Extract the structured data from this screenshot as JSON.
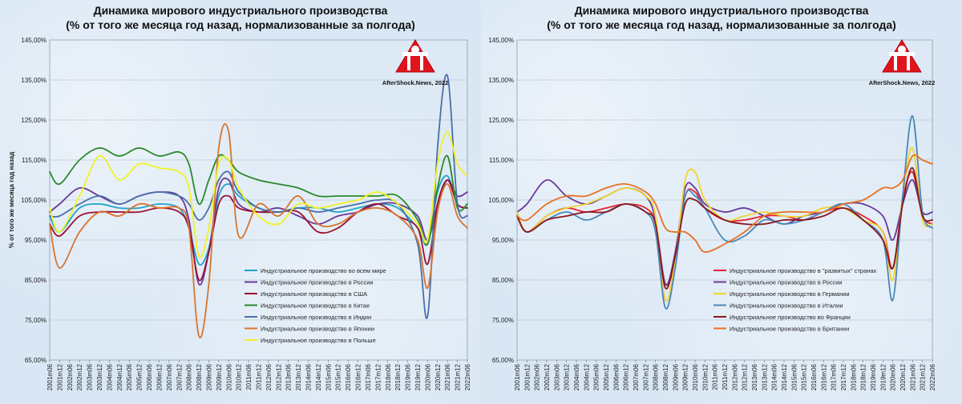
{
  "logo": {
    "text": "AfterShock.News, 2022"
  },
  "chart_data": [
    {
      "type": "line",
      "title": "Динамика мирового индустриального производства",
      "subtitle": "(% от того же месяца год назад, нормализованные за полгода)",
      "ylabel": "% от того же месяца год назад",
      "xlabel": "",
      "ylim": [
        65,
        145
      ],
      "yticks": [
        "65,00%",
        "75,00%",
        "85,00%",
        "95,00%",
        "105,00%",
        "115,00%",
        "125,00%",
        "135,00%",
        "145,00%"
      ],
      "xticks": [
        "2001m06",
        "2001m12",
        "2002m06",
        "2002m12",
        "2003m06",
        "2003m12",
        "2004m06",
        "2004m12",
        "2005m06",
        "2005m12",
        "2006m06",
        "2006m12",
        "2007m06",
        "2007m12",
        "2008m06",
        "2008m12",
        "2009m06",
        "2009m12",
        "2010m06",
        "2010m12",
        "2011m06",
        "2011m12",
        "2012m06",
        "2012m12",
        "2013m06",
        "2013m12",
        "2014m06",
        "2014m12",
        "2015m06",
        "2015m12",
        "2016m06",
        "2016m12",
        "2017m06",
        "2017m12",
        "2018m06",
        "2018m12",
        "2019m06",
        "2019m12",
        "2020m06",
        "2020m12",
        "2021m06",
        "2021m12",
        "2022m06"
      ],
      "x": [
        2001.5,
        2002,
        2003,
        2004,
        2005,
        2006,
        2007,
        2008,
        2008.5,
        2009,
        2009.5,
        2010,
        2010.5,
        2011,
        2012,
        2013,
        2014,
        2015,
        2016,
        2017,
        2018,
        2019,
        2020,
        2020.5,
        2021,
        2021.5,
        2022,
        2022.5
      ],
      "series": [
        {
          "name": "Индустриальное производство во всем мире",
          "color": "#1fa3c9",
          "values": [
            101,
            97,
            103,
            104,
            103,
            103,
            104,
            103,
            98,
            89,
            93,
            106,
            109,
            106,
            103,
            102,
            103,
            103,
            102,
            103,
            104,
            103,
            98,
            94,
            107,
            111,
            104,
            103
          ]
        },
        {
          "name": "Индустриальное производство в России",
          "color": "#6b3a9a",
          "values": [
            102,
            104,
            108,
            106,
            104,
            106,
            107,
            106,
            100,
            84,
            92,
            108,
            110,
            104,
            102,
            103,
            101,
            99,
            101,
            102,
            104,
            104,
            101,
            95,
            104,
            110,
            106,
            107
          ]
        },
        {
          "name": "Индустриальное производство в США",
          "color": "#9b1030",
          "values": [
            99,
            96,
            101,
            102,
            102,
            102,
            103,
            102,
            98,
            85,
            92,
            104,
            106,
            103,
            102,
            102,
            102,
            97,
            98,
            102,
            104,
            101,
            98,
            89,
            104,
            110,
            104,
            103
          ]
        },
        {
          "name": "Индустриальное производство в Китае",
          "color": "#2a8a2a",
          "values": [
            112,
            109,
            115,
            118,
            116,
            118,
            116,
            117,
            114,
            104,
            110,
            116,
            115,
            112,
            110,
            109,
            108,
            106,
            106,
            106,
            106,
            106,
            100,
            94,
            108,
            116,
            103,
            104
          ]
        },
        {
          "name": "Индустриальное производство в Индии",
          "color": "#4a6fa8",
          "values": [
            101,
            101,
            104,
            106,
            104,
            106,
            107,
            106,
            104,
            100,
            103,
            110,
            112,
            107,
            103,
            102,
            103,
            102,
            103,
            104,
            105,
            104,
            94,
            76,
            118,
            136,
            104,
            101
          ]
        },
        {
          "name": "Индустриальное производство в Японии",
          "color": "#d8742c",
          "values": [
            99,
            88,
            97,
            102,
            101,
            104,
            103,
            103,
            98,
            71,
            84,
            118,
            122,
            96,
            104,
            101,
            106,
            99,
            99,
            102,
            103,
            101,
            95,
            83,
            102,
            109,
            101,
            98
          ]
        },
        {
          "name": "Индустриальное производство в Польше",
          "color": "#f2f222",
          "values": [
            103,
            97,
            106,
            116,
            110,
            114,
            113,
            112,
            108,
            91,
            98,
            114,
            115,
            108,
            101,
            99,
            104,
            103,
            104,
            105,
            107,
            104,
            99,
            95,
            114,
            122,
            114,
            111
          ]
        }
      ]
    },
    {
      "type": "line",
      "title": "Динамика мирового индустриального производства",
      "subtitle": "(% от того же месяца год назад, нормализованные за полгода)",
      "ylabel": "",
      "xlabel": "",
      "ylim": [
        65,
        145
      ],
      "yticks": [
        "65,00%",
        "75,00%",
        "85,00%",
        "95,00%",
        "105,00%",
        "115,00%",
        "125,00%",
        "135,00%",
        "145,00%"
      ],
      "xticks": [
        "2001m06",
        "2001m12",
        "2002m06",
        "2002m12",
        "2003m06",
        "2003m12",
        "2004m06",
        "2004m12",
        "2005m06",
        "2005m12",
        "2006m06",
        "2006m12",
        "2007m06",
        "2007m12",
        "2008m06",
        "2008m12",
        "2009m06",
        "2009m12",
        "2010m06",
        "2010m12",
        "2011m06",
        "2011m12",
        "2012m06",
        "2012m12",
        "2013m06",
        "2013m12",
        "2014m06",
        "2014m12",
        "2015m06",
        "2015m12",
        "2016m06",
        "2016m12",
        "2017m06",
        "2017m12",
        "2018m06",
        "2018m12",
        "2019m06",
        "2019m12",
        "2020m06",
        "2020m12",
        "2021m06",
        "2021m12",
        "2022m06"
      ],
      "x": [
        2001.5,
        2002,
        2003,
        2004,
        2005,
        2006,
        2007,
        2008,
        2008.5,
        2009,
        2009.5,
        2010,
        2010.5,
        2011,
        2012,
        2013,
        2014,
        2015,
        2016,
        2017,
        2018,
        2019,
        2020,
        2020.5,
        2021,
        2021.5,
        2022,
        2022.5
      ],
      "series": [
        {
          "name": "Индустриальное производство в \"развитых\" странах",
          "color": "#e8202a",
          "values": [
            101,
            97,
            101,
            103,
            102,
            103,
            104,
            103,
            99,
            84,
            90,
            106,
            107,
            103,
            100,
            100,
            101,
            101,
            100,
            102,
            103,
            101,
            97,
            88,
            105,
            112,
            101,
            99
          ]
        },
        {
          "name": "Индустриальное производство в России",
          "color": "#6b3a9a",
          "values": [
            102,
            104,
            110,
            106,
            104,
            106,
            108,
            106,
            100,
            84,
            92,
            108,
            108,
            104,
            102,
            103,
            101,
            99,
            101,
            102,
            104,
            104,
            101,
            95,
            104,
            110,
            102,
            102
          ]
        },
        {
          "name": "Индустриальное производство в Германии",
          "color": "#f0d430",
          "values": [
            102,
            97,
            101,
            103,
            104,
            106,
            108,
            106,
            101,
            80,
            90,
            110,
            112,
            105,
            100,
            101,
            102,
            101,
            101,
            103,
            103,
            100,
            97,
            85,
            106,
            118,
            100,
            99
          ]
        },
        {
          "name": "Индустриальное производство в Италии",
          "color": "#4a88b8",
          "values": [
            101,
            97,
            100,
            102,
            100,
            102,
            104,
            102,
            97,
            78,
            88,
            106,
            106,
            103,
            95,
            96,
            100,
            99,
            100,
            102,
            104,
            100,
            95,
            80,
            106,
            126,
            102,
            98
          ]
        },
        {
          "name": "Индустриальное производство во Франции",
          "color": "#8a1620",
          "values": [
            101,
            97,
            100,
            101,
            102,
            102,
            104,
            102,
            99,
            83,
            91,
            104,
            105,
            103,
            100,
            99,
            99,
            100,
            100,
            101,
            103,
            100,
            95,
            88,
            104,
            113,
            101,
            100
          ]
        },
        {
          "name": "Индустриальное производство в Британии",
          "color": "#e87020",
          "values": [
            101,
            100,
            104,
            106,
            106,
            108,
            109,
            107,
            104,
            98,
            97,
            97,
            95,
            92,
            94,
            97,
            101,
            102,
            102,
            102,
            104,
            105,
            108,
            108,
            110,
            116,
            115,
            114
          ]
        }
      ]
    }
  ]
}
